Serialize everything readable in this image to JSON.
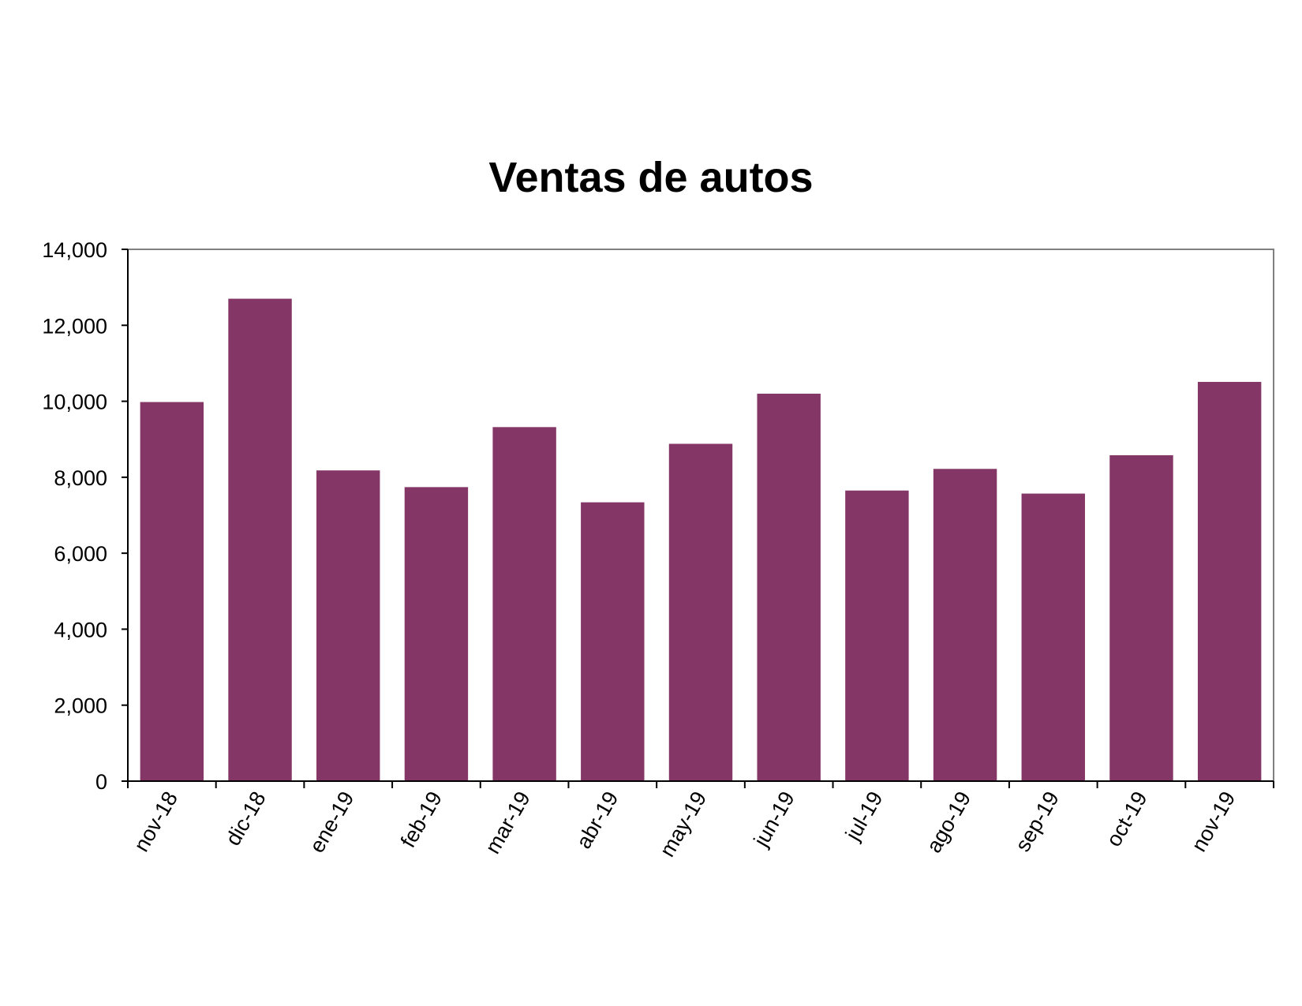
{
  "chart_data": {
    "type": "bar",
    "title": "Ventas de autos",
    "xlabel": "",
    "ylabel": "",
    "categories": [
      "nov-18",
      "dic-18",
      "ene-19",
      "feb-19",
      "mar-19",
      "abr-19",
      "may-19",
      "jun-19",
      "jul-19",
      "ago-19",
      "sep-19",
      "oct-19",
      "nov-19"
    ],
    "values": [
      9980,
      12700,
      8180,
      7740,
      9320,
      7340,
      8880,
      10200,
      7650,
      8220,
      7570,
      8580,
      10510
    ],
    "ylim": [
      0,
      14000
    ],
    "yticks": [
      0,
      2000,
      4000,
      6000,
      8000,
      10000,
      12000,
      14000
    ],
    "ytick_labels": [
      "0",
      "2,000",
      "4,000",
      "6,000",
      "8,000",
      "10,000",
      "12,000",
      "14,000"
    ],
    "bar_color": "#843666",
    "grid": false,
    "legend": "none"
  }
}
